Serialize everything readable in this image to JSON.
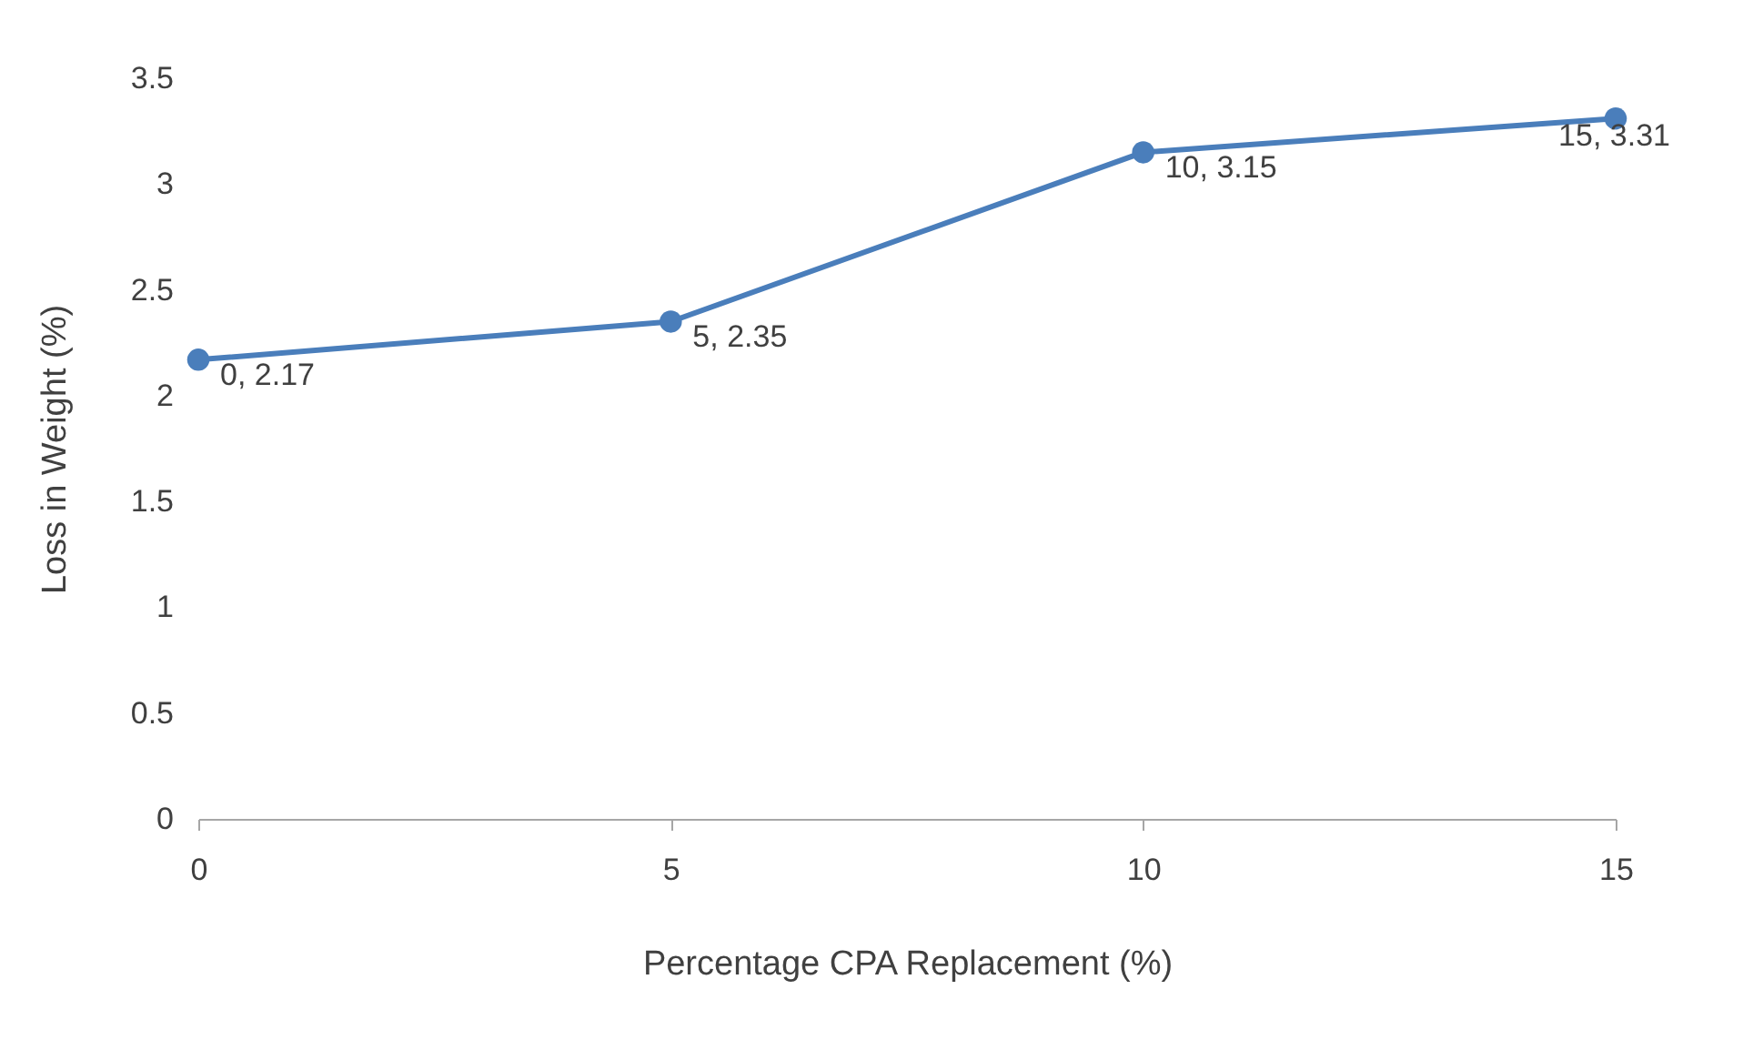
{
  "chart_data": {
    "type": "line",
    "xlabel": "Percentage CPA Replacement (%)",
    "ylabel": "Loss in Weight (%)",
    "x": [
      0,
      5,
      10,
      15
    ],
    "series": [
      {
        "color": "#4a7ebb",
        "values": [
          2.17,
          2.35,
          3.15,
          3.31
        ],
        "value_labels": [
          "0, 2.17",
          "5, 2.35",
          "10, 3.15",
          "15, 3.31"
        ]
      }
    ],
    "xlim": [
      0,
      15
    ],
    "xticks": [
      0,
      5,
      10,
      15
    ],
    "ylim": [
      0,
      3.5
    ],
    "yticks": [
      0,
      0.5,
      1,
      1.5,
      2,
      2.5,
      3,
      3.5
    ],
    "grid": false,
    "marker": "circle",
    "line_style": "solid"
  }
}
